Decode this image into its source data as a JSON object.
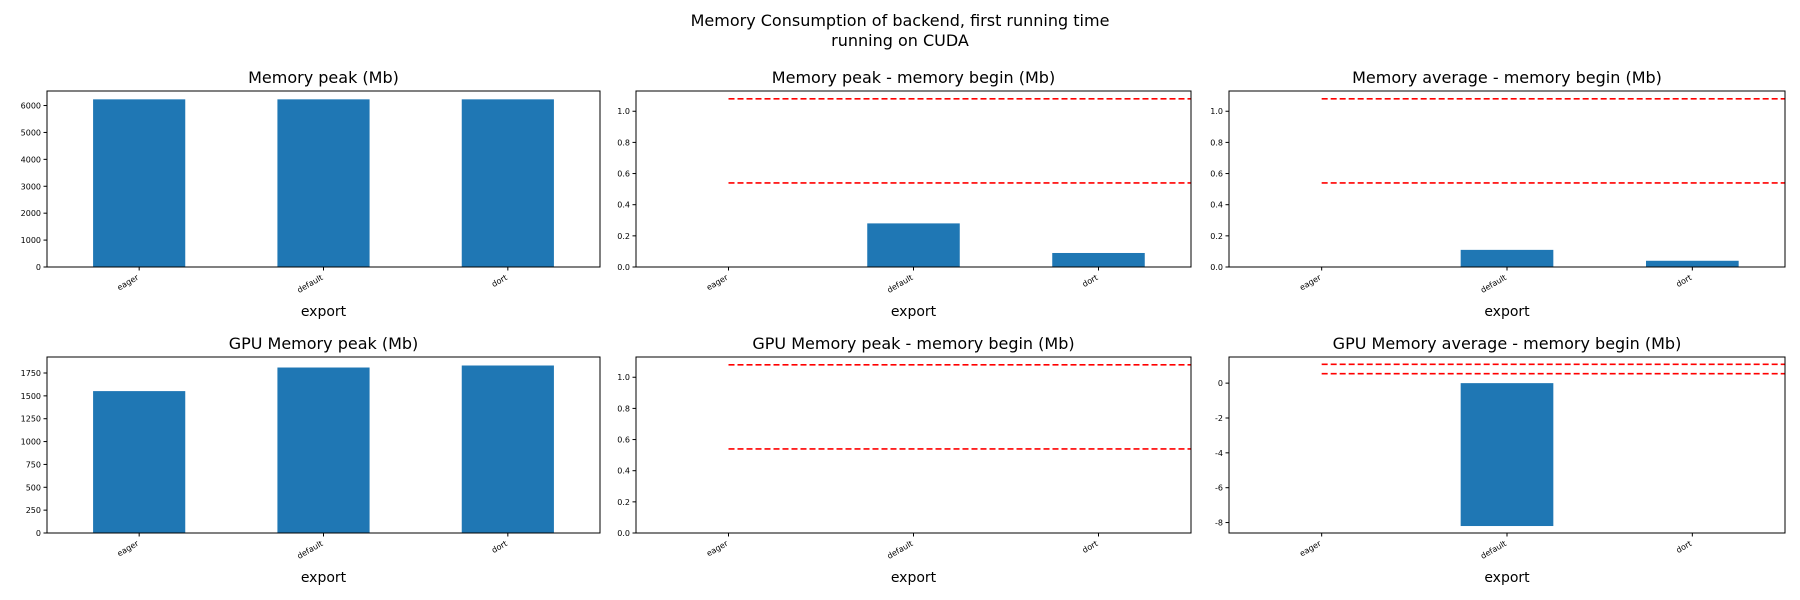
{
  "figure": {
    "suptitle_line1": "Memory Consumption of backend, first running time",
    "suptitle_line2": "running on CUDA"
  },
  "colors": {
    "bar": "#1f77b4",
    "reference_line": "#ff0000",
    "axes": "#000000"
  },
  "chart_data": [
    {
      "type": "bar",
      "title": "Memory peak (Mb)",
      "xlabel": "export",
      "categories": [
        "eager",
        "default",
        "dort"
      ],
      "values": [
        6230,
        6230,
        6230
      ],
      "ylim": [
        0,
        6540
      ],
      "yticks": [
        0,
        1000,
        2000,
        3000,
        4000,
        5000,
        6000
      ],
      "reference_lines": [],
      "grid": false
    },
    {
      "type": "bar",
      "title": "Memory peak - memory begin (Mb)",
      "xlabel": "export",
      "categories": [
        "eager",
        "default",
        "dort"
      ],
      "values": [
        0,
        0.28,
        0.09
      ],
      "ylim": [
        0,
        1.13
      ],
      "yticks": [
        0.0,
        0.2,
        0.4,
        0.6,
        0.8,
        1.0
      ],
      "reference_lines": [
        1.08,
        0.54
      ],
      "grid": false
    },
    {
      "type": "bar",
      "title": "Memory average - memory begin (Mb)",
      "xlabel": "export",
      "categories": [
        "eager",
        "default",
        "dort"
      ],
      "values": [
        0,
        0.11,
        0.04
      ],
      "ylim": [
        0,
        1.13
      ],
      "yticks": [
        0.0,
        0.2,
        0.4,
        0.6,
        0.8,
        1.0
      ],
      "reference_lines": [
        1.08,
        0.54
      ],
      "grid": false
    },
    {
      "type": "bar",
      "title": "GPU Memory peak (Mb)",
      "xlabel": "export",
      "categories": [
        "eager",
        "default",
        "dort"
      ],
      "values": [
        1552,
        1810,
        1832
      ],
      "ylim": [
        0,
        1925
      ],
      "yticks": [
        0,
        250,
        500,
        750,
        1000,
        1250,
        1500,
        1750
      ],
      "reference_lines": [],
      "grid": false
    },
    {
      "type": "bar",
      "title": "GPU Memory peak - memory begin (Mb)",
      "xlabel": "export",
      "categories": [
        "eager",
        "default",
        "dort"
      ],
      "values": [
        0,
        0,
        0
      ],
      "ylim": [
        0,
        1.13
      ],
      "yticks": [
        0.0,
        0.2,
        0.4,
        0.6,
        0.8,
        1.0
      ],
      "reference_lines": [
        1.08,
        0.54
      ],
      "grid": false
    },
    {
      "type": "bar",
      "title": "GPU Memory average - memory begin (Mb)",
      "xlabel": "export",
      "categories": [
        "eager",
        "default",
        "dort"
      ],
      "values": [
        0,
        -8.2,
        0
      ],
      "ylim": [
        -8.6,
        1.5
      ],
      "yticks": [
        -8,
        -6,
        -4,
        -2,
        0
      ],
      "reference_lines": [
        1.08,
        0.54
      ],
      "grid": false
    }
  ]
}
